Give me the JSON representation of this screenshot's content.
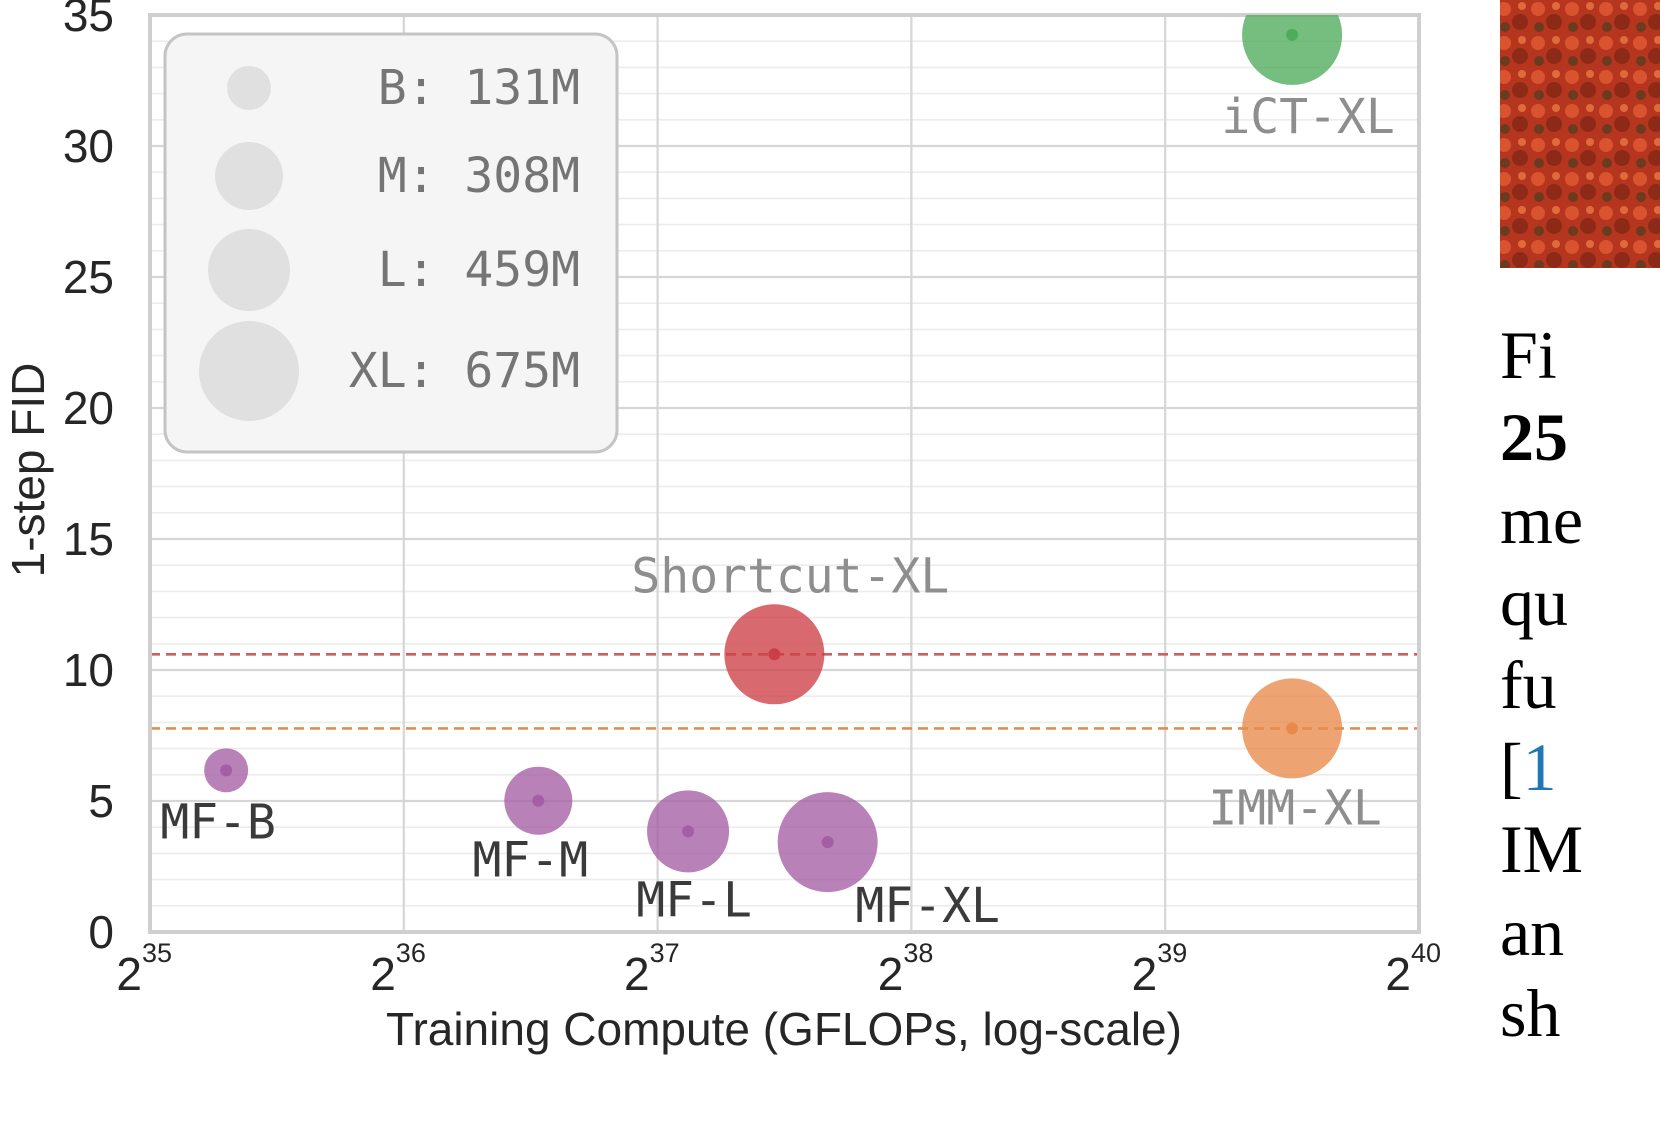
{
  "chart_data": {
    "type": "scatter",
    "title": "",
    "xlabel": "Training Compute (GFLOPs, log-scale)",
    "ylabel": "1-step FID",
    "x_scale": "log2",
    "xlim": [
      35,
      40
    ],
    "ylim": [
      0,
      35
    ],
    "x_tick_base": "2",
    "x_tick_exponents": [
      "35",
      "36",
      "37",
      "38",
      "39",
      "40"
    ],
    "y_ticks": [
      "0",
      "5",
      "10",
      "15",
      "20",
      "25",
      "30",
      "35"
    ],
    "grid": true,
    "legend_placement": "top-left",
    "legend": [
      {
        "label": "B: 131M",
        "params_m": 131
      },
      {
        "label": "M: 308M",
        "params_m": 308
      },
      {
        "label": "L: 459M",
        "params_m": 459
      },
      {
        "label": "XL: 675M",
        "params_m": 675
      }
    ],
    "points": [
      {
        "label": "MF-B",
        "log2_gflops": 35.3,
        "fid": 6.17,
        "size": "B",
        "color": "#a45ea3"
      },
      {
        "label": "MF-M",
        "log2_gflops": 36.53,
        "fid": 5.01,
        "size": "M",
        "color": "#a45ea3"
      },
      {
        "label": "MF-L",
        "log2_gflops": 37.12,
        "fid": 3.84,
        "size": "L",
        "color": "#a45ea3"
      },
      {
        "label": "MF-XL",
        "log2_gflops": 37.67,
        "fid": 3.43,
        "size": "XL",
        "color": "#a45ea3"
      },
      {
        "label": "Shortcut-XL",
        "log2_gflops": 37.46,
        "fid": 10.6,
        "size": "XL",
        "color": "#cc3f47"
      },
      {
        "label": "IMM-XL",
        "log2_gflops": 39.5,
        "fid": 7.77,
        "size": "XL",
        "color": "#e98a4a"
      },
      {
        "label": "iCT-XL",
        "log2_gflops": 39.5,
        "fid": 34.24,
        "size": "XL",
        "color": "#4eac5b"
      }
    ],
    "reference_lines": [
      {
        "fid": 10.6,
        "color": "#cc5f62"
      },
      {
        "fid": 7.77,
        "color": "#e98a4a"
      }
    ]
  },
  "side_text": {
    "lines": [
      "Fi",
      "25",
      "me",
      "qu",
      "fu",
      "[1",
      "IM",
      "an",
      "sh"
    ]
  }
}
